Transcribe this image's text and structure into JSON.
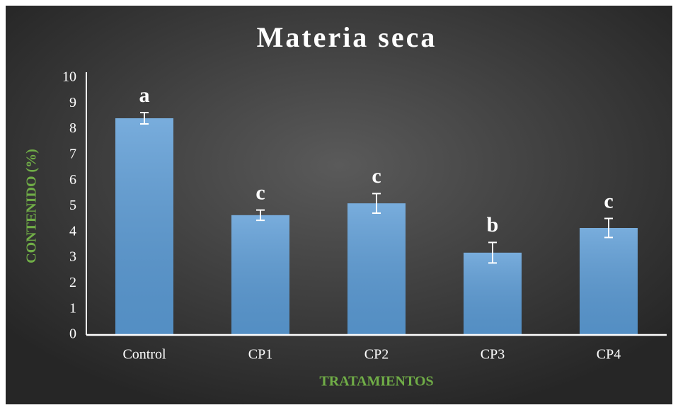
{
  "chart_data": {
    "type": "bar",
    "title": "Materia seca",
    "x_label": "TRATAMIENTOS",
    "y_label": "CONTENIDO (%)",
    "categories": [
      "Control",
      "CP1",
      "CP2",
      "CP3",
      "CP4"
    ],
    "values": [
      8.43,
      4.66,
      5.12,
      3.2,
      4.16
    ],
    "errors": [
      0.22,
      0.2,
      0.38,
      0.4,
      0.37
    ],
    "annotations": [
      "a",
      "c",
      "c",
      "b",
      "c"
    ],
    "color": "#5b9bd5",
    "ylim": [
      0,
      10
    ],
    "yticks": [
      0,
      1,
      2,
      3,
      4,
      5,
      6,
      7,
      8,
      9,
      10
    ],
    "grid": false
  }
}
